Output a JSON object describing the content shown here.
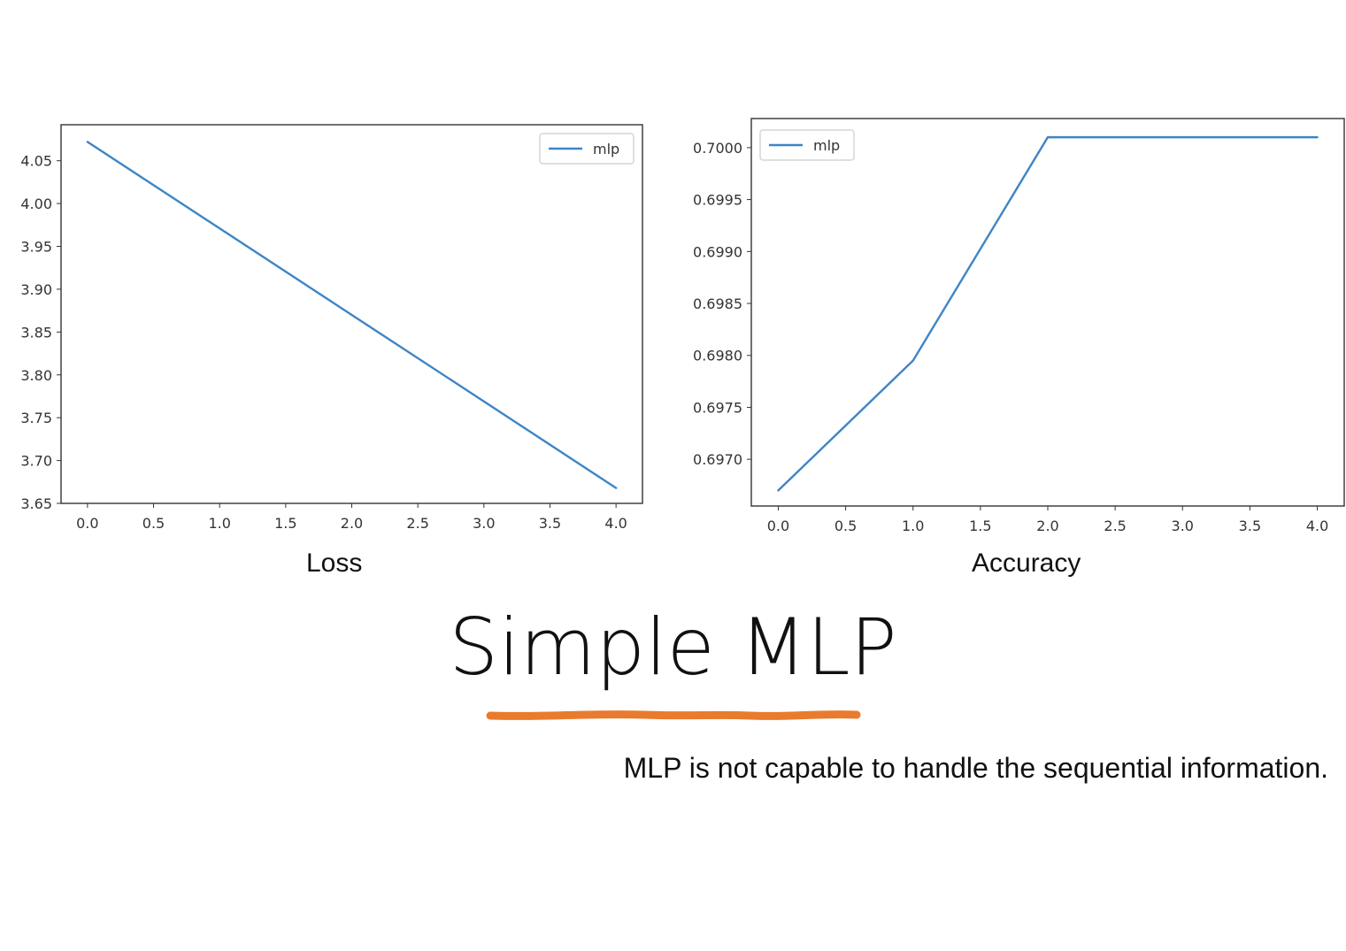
{
  "slide": {
    "title": "Simple MLP",
    "subtitle": "MLP is not capable to handle the sequential information.",
    "accent_color": "#e97b2e"
  },
  "chart_data": [
    {
      "type": "line",
      "caption": "Loss",
      "x": [
        0,
        1,
        2,
        3,
        4
      ],
      "x_ticks": [
        "0.0",
        "0.5",
        "1.0",
        "1.5",
        "2.0",
        "2.5",
        "3.0",
        "3.5",
        "4.0"
      ],
      "y_ticks": [
        "3.65",
        "3.70",
        "3.75",
        "3.80",
        "3.85",
        "3.90",
        "3.95",
        "4.00",
        "4.05"
      ],
      "xlim": [
        -0.2,
        4.2
      ],
      "ylim": [
        3.65,
        4.092
      ],
      "legend_position": "upper right",
      "series": [
        {
          "name": "mlp",
          "color": "#3d85c6",
          "values": [
            4.072,
            3.971,
            3.87,
            3.769,
            3.668
          ]
        }
      ]
    },
    {
      "type": "line",
      "caption": "Accuracy",
      "x": [
        0,
        1,
        2,
        3,
        4
      ],
      "x_ticks": [
        "0.0",
        "0.5",
        "1.0",
        "1.5",
        "2.0",
        "2.5",
        "3.0",
        "3.5",
        "4.0"
      ],
      "y_ticks": [
        "0.6970",
        "0.6975",
        "0.6980",
        "0.6985",
        "0.6990",
        "0.6995",
        "0.7000"
      ],
      "xlim": [
        -0.2,
        4.2
      ],
      "ylim": [
        0.69655,
        0.70028
      ],
      "legend_position": "upper left",
      "series": [
        {
          "name": "mlp",
          "color": "#3d85c6",
          "values": [
            0.6967,
            0.69795,
            0.7001,
            0.7001,
            0.7001
          ]
        }
      ]
    }
  ]
}
